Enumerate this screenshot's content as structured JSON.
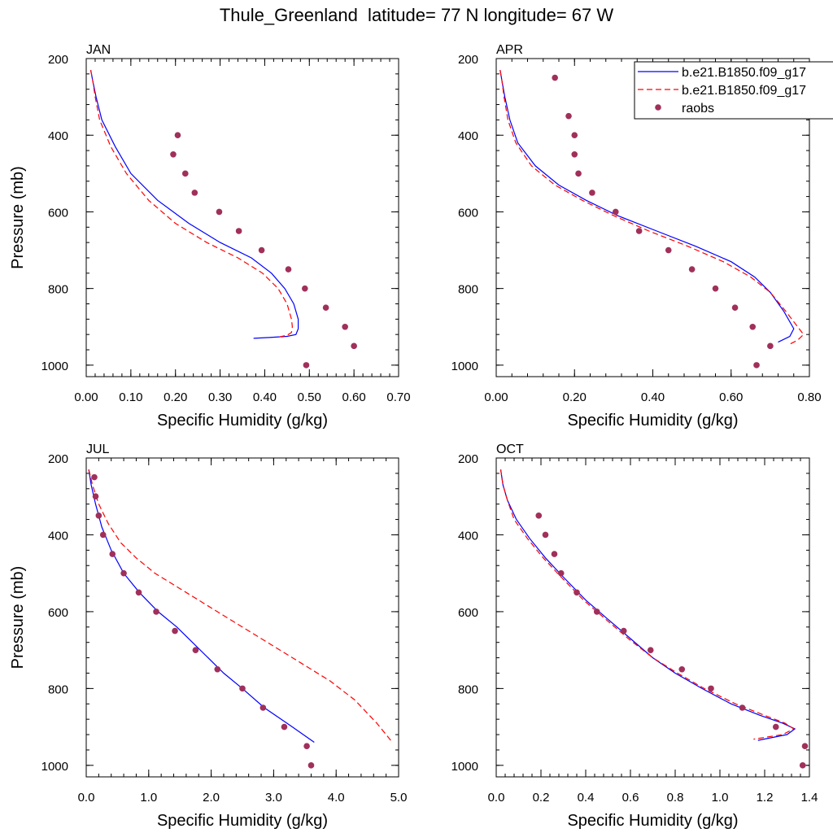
{
  "title": "Thule_Greenland  latitude= 77 N longitude= 67 W",
  "legend": {
    "entries": [
      {
        "label": "b.e21.B1850.f09_g17",
        "style": "line",
        "color": "#0000ff"
      },
      {
        "label": "b.e21.B1850.f09_g17",
        "style": "dashed",
        "color": "#ff0000"
      },
      {
        "label": "raobs",
        "style": "marker",
        "color": "#a0305a"
      }
    ]
  },
  "colors": {
    "model_solid": "#0000ff",
    "model_dashed": "#ff0000",
    "raobs": "#a0305a"
  },
  "chart_data": [
    {
      "type": "line",
      "panel": "JAN",
      "xlabel": "Specific Humidity (g/kg)",
      "ylabel": "Pressure (mb)",
      "xlim": [
        0,
        0.7
      ],
      "ylim": [
        200,
        1030
      ],
      "xticks": [
        0,
        0.1,
        0.2,
        0.3,
        0.4,
        0.5,
        0.6,
        0.7
      ],
      "xtick_labels": [
        "0.00",
        "0.10",
        "0.20",
        "0.30",
        "0.40",
        "0.50",
        "0.60",
        "0.70"
      ],
      "yticks": [
        200,
        400,
        600,
        800,
        1000
      ],
      "ytick_labels": [
        "200",
        "400",
        "600",
        "800",
        "1000"
      ],
      "series": [
        {
          "style": "solid",
          "x": [
            0.01,
            0.015,
            0.022,
            0.035,
            0.065,
            0.1,
            0.16,
            0.23,
            0.3,
            0.37,
            0.415,
            0.445,
            0.465,
            0.475,
            0.475,
            0.47,
            0.45,
            0.41,
            0.375
          ],
          "y": [
            230,
            260,
            300,
            360,
            430,
            500,
            570,
            630,
            680,
            720,
            760,
            800,
            840,
            880,
            905,
            920,
            925,
            928,
            930
          ]
        },
        {
          "style": "dashed",
          "x": [
            0.01,
            0.015,
            0.02,
            0.03,
            0.055,
            0.09,
            0.14,
            0.2,
            0.27,
            0.34,
            0.395,
            0.43,
            0.45,
            0.46,
            0.462,
            0.46,
            0.45,
            0.43
          ],
          "y": [
            230,
            260,
            300,
            360,
            430,
            500,
            570,
            630,
            680,
            720,
            760,
            800,
            840,
            880,
            900,
            915,
            922,
            927
          ]
        }
      ],
      "points": {
        "x": [
          0.205,
          0.195,
          0.222,
          0.243,
          0.298,
          0.342,
          0.393,
          0.453,
          0.49,
          0.537,
          0.58,
          0.6,
          0.493
        ],
        "y": [
          400,
          450,
          500,
          550,
          600,
          650,
          700,
          750,
          800,
          850,
          900,
          950,
          1000
        ]
      }
    },
    {
      "type": "line",
      "panel": "APR",
      "xlabel": "Specific Humidity (g/kg)",
      "ylabel": "",
      "xlim": [
        0,
        0.8
      ],
      "ylim": [
        200,
        1030
      ],
      "xticks": [
        0,
        0.2,
        0.4,
        0.6,
        0.8
      ],
      "xtick_labels": [
        "0.00",
        "0.20",
        "0.40",
        "0.60",
        "0.80"
      ],
      "yticks": [
        200,
        400,
        600,
        800,
        1000
      ],
      "ytick_labels": [
        "200",
        "400",
        "600",
        "800",
        "1000"
      ],
      "series": [
        {
          "style": "solid",
          "x": [
            0.01,
            0.015,
            0.022,
            0.035,
            0.055,
            0.1,
            0.16,
            0.23,
            0.31,
            0.41,
            0.51,
            0.6,
            0.66,
            0.7,
            0.735,
            0.76,
            0.75,
            0.72
          ],
          "y": [
            230,
            260,
            300,
            360,
            420,
            480,
            530,
            570,
            610,
            650,
            690,
            730,
            770,
            810,
            860,
            905,
            925,
            940
          ]
        },
        {
          "style": "dashed",
          "x": [
            0.01,
            0.015,
            0.02,
            0.03,
            0.05,
            0.09,
            0.15,
            0.22,
            0.3,
            0.39,
            0.49,
            0.58,
            0.65,
            0.7,
            0.74,
            0.77,
            0.785,
            0.77,
            0.75
          ],
          "y": [
            230,
            260,
            300,
            360,
            420,
            480,
            530,
            570,
            610,
            650,
            690,
            730,
            770,
            810,
            860,
            900,
            920,
            935,
            945
          ]
        }
      ],
      "points": {
        "x": [
          0.15,
          0.185,
          0.2,
          0.2,
          0.21,
          0.245,
          0.305,
          0.365,
          0.44,
          0.5,
          0.56,
          0.61,
          0.655,
          0.7,
          0.665
        ],
        "y": [
          250,
          350,
          400,
          450,
          500,
          550,
          600,
          650,
          700,
          750,
          800,
          850,
          900,
          950,
          1000
        ]
      }
    },
    {
      "type": "line",
      "panel": "JUL",
      "xlabel": "Specific Humidity (g/kg)",
      "ylabel": "Pressure (mb)",
      "xlim": [
        0,
        5
      ],
      "ylim": [
        200,
        1030
      ],
      "xticks": [
        0,
        1,
        2,
        3,
        4,
        5
      ],
      "xtick_labels": [
        "0.0",
        "1.0",
        "2.0",
        "3.0",
        "4.0",
        "5.0"
      ],
      "yticks": [
        200,
        400,
        600,
        800,
        1000
      ],
      "ytick_labels": [
        "200",
        "400",
        "600",
        "800",
        "1000"
      ],
      "series": [
        {
          "style": "solid",
          "x": [
            0.04,
            0.08,
            0.15,
            0.25,
            0.4,
            0.6,
            0.85,
            1.15,
            1.45,
            1.7,
            1.95,
            2.2,
            2.5,
            2.85,
            3.3,
            3.65
          ],
          "y": [
            230,
            270,
            320,
            380,
            440,
            500,
            550,
            600,
            640,
            680,
            720,
            760,
            800,
            850,
            900,
            940
          ]
        },
        {
          "style": "dashed",
          "x": [
            0.04,
            0.1,
            0.2,
            0.35,
            0.55,
            0.8,
            1.1,
            1.5,
            1.9,
            2.3,
            2.7,
            3.1,
            3.5,
            3.9,
            4.3,
            4.65,
            4.9
          ],
          "y": [
            230,
            270,
            320,
            370,
            420,
            460,
            500,
            540,
            580,
            620,
            660,
            700,
            740,
            780,
            830,
            890,
            940
          ]
        }
      ],
      "points": {
        "x": [
          0.13,
          0.15,
          0.2,
          0.27,
          0.42,
          0.6,
          0.84,
          1.12,
          1.42,
          1.75,
          2.1,
          2.5,
          2.83,
          3.17,
          3.53,
          3.6
        ],
        "y": [
          250,
          300,
          350,
          400,
          450,
          500,
          550,
          600,
          650,
          700,
          750,
          800,
          850,
          900,
          950,
          1000
        ]
      }
    },
    {
      "type": "line",
      "panel": "OCT",
      "xlabel": "Specific Humidity (g/kg)",
      "ylabel": "",
      "xlim": [
        0,
        1.4
      ],
      "ylim": [
        200,
        1030
      ],
      "xticks": [
        0,
        0.2,
        0.4,
        0.6,
        0.8,
        1.0,
        1.2,
        1.4
      ],
      "xtick_labels": [
        "0.0",
        "0.2",
        "0.4",
        "0.6",
        "0.8",
        "1.0",
        "1.2",
        "1.4"
      ],
      "yticks": [
        200,
        400,
        600,
        800,
        1000
      ],
      "ytick_labels": [
        "200",
        "400",
        "600",
        "800",
        "1000"
      ],
      "series": [
        {
          "style": "solid",
          "x": [
            0.02,
            0.03,
            0.05,
            0.09,
            0.15,
            0.22,
            0.3,
            0.4,
            0.5,
            0.6,
            0.7,
            0.8,
            0.92,
            1.05,
            1.18,
            1.28,
            1.335,
            1.3,
            1.17
          ],
          "y": [
            230,
            270,
            310,
            360,
            410,
            460,
            510,
            570,
            620,
            670,
            720,
            760,
            800,
            840,
            870,
            890,
            905,
            920,
            935
          ]
        },
        {
          "style": "dashed",
          "x": [
            0.02,
            0.03,
            0.05,
            0.08,
            0.14,
            0.21,
            0.29,
            0.39,
            0.49,
            0.59,
            0.7,
            0.81,
            0.93,
            1.07,
            1.2,
            1.29,
            1.33,
            1.28,
            1.15
          ],
          "y": [
            230,
            270,
            310,
            360,
            410,
            460,
            510,
            570,
            620,
            670,
            720,
            760,
            800,
            840,
            870,
            890,
            905,
            920,
            932
          ]
        }
      ],
      "points": {
        "x": [
          0.19,
          0.22,
          0.26,
          0.29,
          0.36,
          0.45,
          0.57,
          0.69,
          0.83,
          0.96,
          1.1,
          1.25,
          1.38,
          1.37
        ],
        "y": [
          350,
          400,
          450,
          500,
          550,
          600,
          650,
          700,
          750,
          800,
          850,
          900,
          950,
          1000
        ]
      }
    }
  ]
}
